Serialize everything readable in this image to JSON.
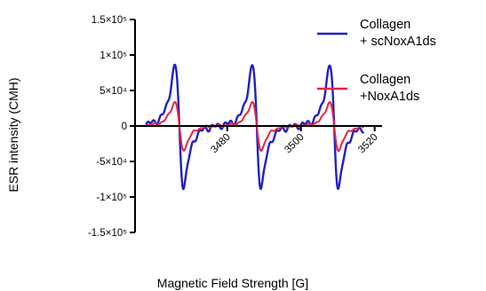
{
  "chart_data": {
    "type": "line",
    "title": "",
    "xlabel": "Magnetic Field Strength [G]",
    "ylabel": "ESR intensity (CMH)",
    "xlim": [
      3455,
      3522
    ],
    "ylim": [
      -1.5,
      1.5
    ],
    "y_unit_note": "values in units of 10^5",
    "y_ticks": [
      {
        "value": 1.5,
        "label": "1.5×10⁵"
      },
      {
        "value": 1.0,
        "label": "1×10⁵"
      },
      {
        "value": 0.5,
        "label": "5×10⁴"
      },
      {
        "value": 0.0,
        "label": "0"
      },
      {
        "value": -0.5,
        "label": "-5×10⁴"
      },
      {
        "value": -1.0,
        "label": "-1×10⁵"
      },
      {
        "value": -1.5,
        "label": "-1.5×10⁵"
      }
    ],
    "x_ticks": [
      {
        "value": 3480,
        "label": "3480"
      },
      {
        "value": 3500,
        "label": "3500"
      },
      {
        "value": 3520,
        "label": "3520"
      }
    ],
    "peaks": [
      3467,
      3488,
      3509
    ],
    "series": [
      {
        "name": "Collagen + scNoxA1ds",
        "color": "#2020c8",
        "amplitude": 1.5,
        "legend_lines": [
          "Collagen",
          "+ scNoxA1ds"
        ]
      },
      {
        "name": "Collagen +NoxA1ds",
        "color": "#e8243c",
        "amplitude": 0.6,
        "legend_lines": [
          "Collagen",
          "+NoxA1ds"
        ]
      }
    ],
    "legend_position": "right",
    "grid": false
  }
}
